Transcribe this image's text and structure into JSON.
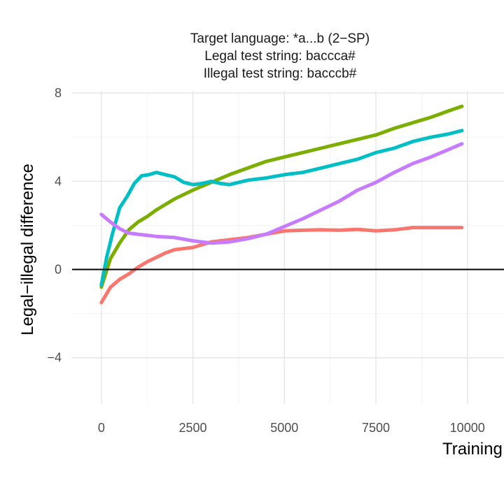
{
  "chart_data": {
    "type": "line",
    "title_lines": [
      "Target language: *a...b (2−SP)",
      "Legal test string: baccca#",
      "Illegal test string: bacccb#"
    ],
    "xlabel": "Training",
    "ylabel": "Legal−illegal difference",
    "xlim": [
      -800,
      11000
    ],
    "ylim": [
      -6.1,
      8.1
    ],
    "x_ticks": [
      {
        "value": 0,
        "label": "0"
      },
      {
        "value": 2500,
        "label": "2500"
      },
      {
        "value": 5000,
        "label": "5000"
      },
      {
        "value": 7500,
        "label": "7500"
      },
      {
        "value": 10000,
        "label": "10000"
      }
    ],
    "y_ticks": [
      {
        "value": -4,
        "label": "−4"
      },
      {
        "value": 0,
        "label": "0"
      },
      {
        "value": 4,
        "label": "4"
      },
      {
        "value": 8,
        "label": "8"
      }
    ],
    "hline": 0,
    "grid": true,
    "legend": "none",
    "series": [
      {
        "color": "#F8766D",
        "x": [
          0,
          250,
          500,
          750,
          1000,
          1250,
          1500,
          1750,
          2000,
          2500,
          3000,
          3500,
          4000,
          4500,
          5000,
          5500,
          6000,
          6500,
          7000,
          7500,
          8000,
          8500,
          9000,
          9500,
          9850
        ],
        "y": [
          -1.5,
          -0.8,
          -0.45,
          -0.2,
          0.1,
          0.35,
          0.55,
          0.75,
          0.9,
          1.0,
          1.25,
          1.35,
          1.45,
          1.6,
          1.75,
          1.78,
          1.8,
          1.78,
          1.82,
          1.75,
          1.8,
          1.9,
          1.9,
          1.9,
          1.9
        ]
      },
      {
        "color": "#7CAE00",
        "x": [
          0,
          250,
          500,
          750,
          1000,
          1250,
          1500,
          1750,
          2000,
          2500,
          3000,
          3500,
          4000,
          4500,
          5000,
          5500,
          6000,
          6500,
          7000,
          7500,
          8000,
          8500,
          9000,
          9500,
          9850
        ],
        "y": [
          -0.8,
          0.5,
          1.2,
          1.8,
          2.15,
          2.4,
          2.7,
          2.95,
          3.2,
          3.6,
          3.95,
          4.3,
          4.6,
          4.9,
          5.1,
          5.3,
          5.5,
          5.7,
          5.9,
          6.1,
          6.4,
          6.65,
          6.9,
          7.2,
          7.4
        ]
      },
      {
        "color": "#00BFC4",
        "x": [
          0,
          150,
          300,
          500,
          700,
          900,
          1100,
          1300,
          1500,
          1750,
          2000,
          2250,
          2500,
          2750,
          3000,
          3250,
          3500,
          4000,
          4500,
          5000,
          5500,
          6000,
          6500,
          7000,
          7500,
          8000,
          8500,
          9000,
          9500,
          9850
        ],
        "y": [
          -0.7,
          0.6,
          1.6,
          2.8,
          3.3,
          3.9,
          4.25,
          4.3,
          4.4,
          4.3,
          4.2,
          3.95,
          3.85,
          3.9,
          4.0,
          3.9,
          3.85,
          4.05,
          4.15,
          4.3,
          4.4,
          4.6,
          4.8,
          5.0,
          5.3,
          5.5,
          5.8,
          6.0,
          6.15,
          6.3
        ]
      },
      {
        "color": "#C77CFF",
        "x": [
          0,
          250,
          500,
          750,
          1000,
          1500,
          2000,
          2500,
          3000,
          3500,
          4000,
          4500,
          5000,
          5500,
          6000,
          6500,
          7000,
          7500,
          8000,
          8500,
          9000,
          9500,
          9850
        ],
        "y": [
          2.5,
          2.15,
          1.85,
          1.65,
          1.6,
          1.5,
          1.45,
          1.3,
          1.2,
          1.25,
          1.4,
          1.6,
          1.95,
          2.3,
          2.7,
          3.1,
          3.6,
          3.95,
          4.4,
          4.8,
          5.1,
          5.45,
          5.7
        ]
      }
    ]
  }
}
